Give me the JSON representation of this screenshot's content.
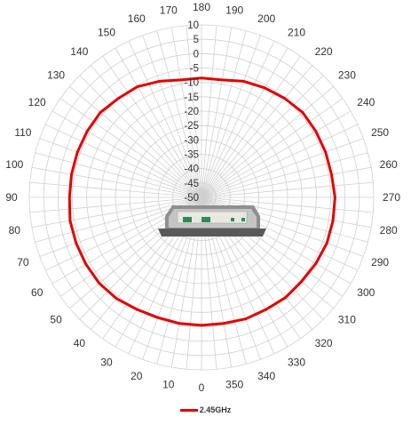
{
  "chart_data": {
    "type": "polar",
    "angle_labels": [
      "0",
      "10",
      "20",
      "30",
      "40",
      "50",
      "60",
      "70",
      "80",
      "90",
      "100",
      "110",
      "120",
      "130",
      "140",
      "150",
      "160",
      "170",
      "180",
      "190",
      "200",
      "210",
      "220",
      "230",
      "240",
      "250",
      "260",
      "270",
      "280",
      "290",
      "300",
      "310",
      "320",
      "330",
      "340",
      "350"
    ],
    "radial_labels": [
      "10",
      "5",
      "0",
      "-5",
      "-10",
      "-15",
      "-20",
      "-25",
      "-30",
      "-35",
      "-40",
      "-45",
      "-50"
    ],
    "rlim": [
      -50,
      10
    ],
    "grid": true,
    "legend_position": "bottom",
    "series": [
      {
        "name": "2.45GHz",
        "color": "#e60000",
        "theta": [
          0,
          10,
          20,
          30,
          40,
          50,
          60,
          70,
          80,
          90,
          100,
          110,
          120,
          130,
          140,
          150,
          160,
          170,
          180,
          190,
          200,
          210,
          220,
          230,
          240,
          250,
          260,
          270,
          280,
          290,
          300,
          310,
          320,
          330,
          340,
          350
        ],
        "r": [
          -5.5,
          -5.5,
          -5.5,
          -5,
          -4,
          -3.5,
          -3.5,
          -3.5,
          -3.5,
          -4,
          -4,
          -4,
          -4,
          -4,
          -5,
          -5.5,
          -7,
          -8.5,
          -8.5,
          -8.5,
          -7,
          -6,
          -5,
          -4,
          -4,
          -4,
          -4,
          -3.5,
          -3.5,
          -3.5,
          -4,
          -4.5,
          -4.5,
          -5,
          -5,
          -5.5
        ]
      }
    ]
  },
  "device_icon": "device-photo-icon"
}
